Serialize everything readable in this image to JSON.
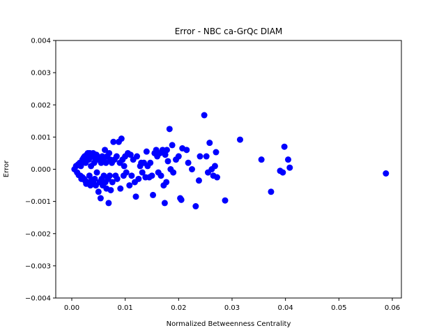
{
  "chart_data": {
    "type": "scatter",
    "title": "Error - NBC ca-GrQc DIAM",
    "xlabel": "Normalized Betweenness Centrality",
    "ylabel": "Error",
    "xlim": [
      -0.003,
      0.0617
    ],
    "ylim": [
      -0.004,
      0.004
    ],
    "x_ticks": [
      0.0,
      0.01,
      0.02,
      0.03,
      0.04,
      0.05,
      0.06
    ],
    "x_tick_labels": [
      "0.00",
      "0.01",
      "0.02",
      "0.03",
      "0.04",
      "0.05",
      "0.06"
    ],
    "y_ticks": [
      -0.004,
      -0.003,
      -0.002,
      -0.001,
      0.0,
      0.001,
      0.002,
      0.003,
      0.004
    ],
    "y_tick_labels": [
      "−0.004",
      "−0.003",
      "−0.002",
      "−0.001",
      "0.000",
      "0.001",
      "0.002",
      "0.003",
      "0.004"
    ],
    "grid": false,
    "marker_color": "#0000ff",
    "series": [
      {
        "points": [
          [
            0.0005,
            0.0
          ],
          [
            0.0008,
            0.0001
          ],
          [
            0.001,
            -0.0001
          ],
          [
            0.0012,
            0.00015
          ],
          [
            0.0013,
            -0.00018
          ],
          [
            0.0015,
            0.0002
          ],
          [
            0.0016,
            -0.0002
          ],
          [
            0.0017,
            0.0001
          ],
          [
            0.0018,
            -0.0003
          ],
          [
            0.002,
            0.0003
          ],
          [
            0.002,
            -0.00025
          ],
          [
            0.0022,
            0.00035
          ],
          [
            0.0023,
            -0.0003
          ],
          [
            0.0024,
            0.0004
          ],
          [
            0.0025,
            -0.00035
          ],
          [
            0.0026,
            0.0002
          ],
          [
            0.0027,
            -0.00045
          ],
          [
            0.0028,
            0.00045
          ],
          [
            0.003,
            0.0005
          ],
          [
            0.003,
            -0.0004
          ],
          [
            0.0032,
            0.0003
          ],
          [
            0.0033,
            -0.0002
          ],
          [
            0.0034,
            0.0005
          ],
          [
            0.0035,
            -0.0005
          ],
          [
            0.0036,
            0.0001
          ],
          [
            0.0037,
            -0.00035
          ],
          [
            0.0038,
            0.0004
          ],
          [
            0.004,
            0.0005
          ],
          [
            0.004,
            -0.0004
          ],
          [
            0.0042,
            0.0002
          ],
          [
            0.0043,
            -0.0003
          ],
          [
            0.0044,
            0.0003
          ],
          [
            0.0045,
            -0.0005
          ],
          [
            0.0046,
            0.00045
          ],
          [
            0.0047,
            -0.0001
          ],
          [
            0.0048,
            0.0004
          ],
          [
            0.005,
            -0.0007
          ],
          [
            0.005,
            0.0003
          ],
          [
            0.0052,
            -0.0004
          ],
          [
            0.0053,
            0.00035
          ],
          [
            0.0054,
            -0.0009
          ],
          [
            0.0055,
            0.0002
          ],
          [
            0.0056,
            -0.0003
          ],
          [
            0.0057,
            0.0004
          ],
          [
            0.0058,
            -0.0005
          ],
          [
            0.006,
            0.0003
          ],
          [
            0.006,
            -0.0002
          ],
          [
            0.0062,
            0.0006
          ],
          [
            0.0063,
            -0.0004
          ],
          [
            0.0064,
            0.0002
          ],
          [
            0.0065,
            -0.0006
          ],
          [
            0.0066,
            0.0004
          ],
          [
            0.0068,
            -0.0003
          ],
          [
            0.007,
            0.0005
          ],
          [
            0.0069,
            -0.00105
          ],
          [
            0.0071,
            -0.0002
          ],
          [
            0.0072,
            0.0003
          ],
          [
            0.0073,
            -0.00065
          ],
          [
            0.0075,
            0.0002
          ],
          [
            0.0076,
            -0.0004
          ],
          [
            0.0078,
            0.00085
          ],
          [
            0.008,
            0.0003
          ],
          [
            0.0082,
            -0.0002
          ],
          [
            0.0084,
            0.0004
          ],
          [
            0.0085,
            -0.0003
          ],
          [
            0.0088,
            0.00085
          ],
          [
            0.009,
            0.0002
          ],
          [
            0.0091,
            -0.0006
          ],
          [
            0.0093,
            0.00095
          ],
          [
            0.0095,
            0.0003
          ],
          [
            0.0097,
            -0.0002
          ],
          [
            0.0098,
            0.0001
          ],
          [
            0.01,
            0.0004
          ],
          [
            0.0102,
            -0.0001
          ],
          [
            0.0105,
            0.0005
          ],
          [
            0.0108,
            -0.0005
          ],
          [
            0.011,
            0.00045
          ],
          [
            0.0112,
            -0.0002
          ],
          [
            0.0115,
            0.0003
          ],
          [
            0.0118,
            -0.0004
          ],
          [
            0.012,
            -0.00085
          ],
          [
            0.0122,
            0.0004
          ],
          [
            0.0125,
            -0.0003
          ],
          [
            0.0128,
            0.0001
          ],
          [
            0.013,
            0.0002
          ],
          [
            0.0132,
            -0.0001
          ],
          [
            0.0135,
            0.0002
          ],
          [
            0.0138,
            -0.00025
          ],
          [
            0.014,
            0.00055
          ],
          [
            0.0142,
            0.0001
          ],
          [
            0.0145,
            -0.00025
          ],
          [
            0.0147,
            0.0002
          ],
          [
            0.015,
            -0.0002
          ],
          [
            0.0152,
            -0.0008
          ],
          [
            0.0155,
            0.0005
          ],
          [
            0.0158,
            0.0006
          ],
          [
            0.016,
            0.0004
          ],
          [
            0.0162,
            -0.0001
          ],
          [
            0.0165,
            0.0005
          ],
          [
            0.0167,
            -0.0002
          ],
          [
            0.017,
            0.0006
          ],
          [
            0.0172,
            -0.0005
          ],
          [
            0.0174,
            -0.00105
          ],
          [
            0.0175,
            0.00045
          ],
          [
            0.0177,
            -0.0004
          ],
          [
            0.0178,
            0.0006
          ],
          [
            0.018,
            0.00025
          ],
          [
            0.0183,
            0.00125
          ],
          [
            0.0185,
            0.0
          ],
          [
            0.0188,
            0.00075
          ],
          [
            0.019,
            -0.0001
          ],
          [
            0.0195,
            0.0003
          ],
          [
            0.02,
            0.0004
          ],
          [
            0.0203,
            -0.0009
          ],
          [
            0.0205,
            -0.00095
          ],
          [
            0.0207,
            0.00065
          ],
          [
            0.0215,
            0.0006
          ],
          [
            0.0218,
            0.0002
          ],
          [
            0.0225,
            0.0
          ],
          [
            0.0232,
            -0.00115
          ],
          [
            0.0238,
            -0.00035
          ],
          [
            0.024,
            0.0004
          ],
          [
            0.0248,
            0.00168
          ],
          [
            0.0252,
            0.0004
          ],
          [
            0.0255,
            -0.0001
          ],
          [
            0.0258,
            0.00082
          ],
          [
            0.0262,
            0.0
          ],
          [
            0.0265,
            -0.0002
          ],
          [
            0.0268,
            0.0001
          ],
          [
            0.027,
            0.00053
          ],
          [
            0.0272,
            -0.00025
          ],
          [
            0.0287,
            -0.00097
          ],
          [
            0.0315,
            0.00092
          ],
          [
            0.0355,
            0.0003
          ],
          [
            0.0373,
            -0.0007
          ],
          [
            0.039,
            -5e-05
          ],
          [
            0.0395,
            -0.0001
          ],
          [
            0.0398,
            0.0007
          ],
          [
            0.0405,
            0.0003
          ],
          [
            0.0408,
            5e-05
          ],
          [
            0.0588,
            -0.00013
          ]
        ]
      }
    ]
  }
}
